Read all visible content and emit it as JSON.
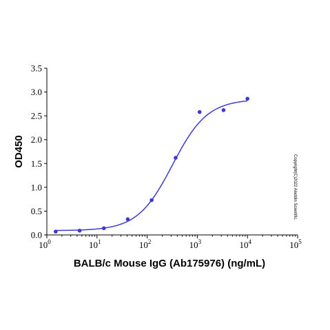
{
  "chart_data": {
    "type": "scatter",
    "xlabel": "BALB/c Mouse IgG (Ab175976) (ng/mL)",
    "ylabel": "OD450",
    "x_scale": "log",
    "xlim": [
      1,
      100000
    ],
    "ylim": [
      0,
      3.5
    ],
    "x_ticks": [
      1,
      10,
      100,
      1000,
      10000,
      100000
    ],
    "x_tick_labels": [
      {
        "base": "10",
        "exp": "0"
      },
      {
        "base": "10",
        "exp": "1"
      },
      {
        "base": "10",
        "exp": "2"
      },
      {
        "base": "10",
        "exp": "3"
      },
      {
        "base": "10",
        "exp": "4"
      },
      {
        "base": "10",
        "exp": "5"
      }
    ],
    "y_ticks": [
      "0.0",
      "0.5",
      "1.0",
      "1.5",
      "2.0",
      "2.5",
      "3.0",
      "3.5"
    ],
    "grid": false,
    "series": [
      {
        "points": [
          {
            "x": 1.5,
            "y": 0.07
          },
          {
            "x": 4.5,
            "y": 0.09
          },
          {
            "x": 13.7,
            "y": 0.14
          },
          {
            "x": 41,
            "y": 0.33
          },
          {
            "x": 123,
            "y": 0.73
          },
          {
            "x": 370,
            "y": 1.62
          },
          {
            "x": 1111,
            "y": 2.58
          },
          {
            "x": 3333,
            "y": 2.62
          },
          {
            "x": 10000,
            "y": 2.86
          }
        ],
        "fit": {
          "model": "4PL",
          "bottom": 0.09,
          "top": 2.85,
          "ec50": 320,
          "hill": 1.25
        }
      }
    ],
    "colors": {
      "series": "#3a3acc",
      "axis": "#000000"
    },
    "copyright": "Copyright(C)2022 Aladdin Scientific."
  }
}
